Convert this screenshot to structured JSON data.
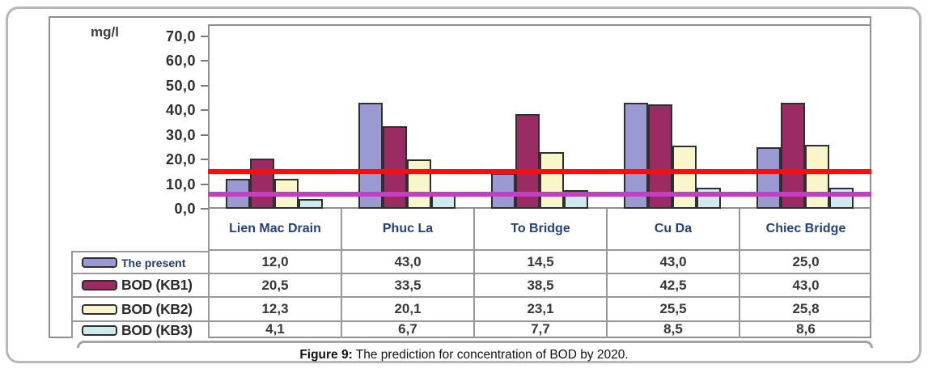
{
  "caption": {
    "prefix": "Figure 9:",
    "text": " The prediction for concentration of BOD by 2020."
  },
  "chart_data": {
    "type": "bar",
    "title": "",
    "unit_label": "mg/l",
    "xlabel": "",
    "ylabel": "mg/l",
    "categories": [
      "Lien Mac Drain",
      "Phuc La",
      "To Bridge",
      "Cu Da",
      "Chiec Bridge"
    ],
    "series": [
      {
        "name": "The present",
        "color": "#9a99d1",
        "values": [
          12.0,
          43.0,
          14.5,
          43.0,
          25.0
        ]
      },
      {
        "name": "BOD (KB1)",
        "color": "#9b2c63",
        "values": [
          20.5,
          33.5,
          38.5,
          42.5,
          43.0
        ]
      },
      {
        "name": "BOD (KB2)",
        "color": "#f8f6ca",
        "values": [
          12.3,
          20.1,
          23.1,
          25.5,
          25.8
        ]
      },
      {
        "name": "BOD (KB3)",
        "color": "#cfeaec",
        "values": [
          4.1,
          6.7,
          7.7,
          8.5,
          8.6
        ]
      }
    ],
    "table_values": [
      [
        "12,0",
        "43,0",
        "14,5",
        "43,0",
        "25,0"
      ],
      [
        "20,5",
        "33,5",
        "38,5",
        "42,5",
        "43,0"
      ],
      [
        "12,3",
        "20,1",
        "23,1",
        "25,5",
        "25,8"
      ],
      [
        "4,1",
        "6,7",
        "7,7",
        "8,5",
        "8,6"
      ]
    ],
    "y_axis": {
      "min": 0,
      "max": 70,
      "step": 10,
      "tick_labels": [
        "70,0",
        "60,0",
        "50,0",
        "40,0",
        "30,0",
        "20,0",
        "10,0",
        "0,0"
      ]
    },
    "ylim": [
      0,
      75
    ],
    "grid": false,
    "legend_position": "table-left",
    "reference_lines": [
      {
        "value": 15,
        "color": "#f51010"
      },
      {
        "value": 6,
        "color": "#c23ec2"
      }
    ]
  }
}
